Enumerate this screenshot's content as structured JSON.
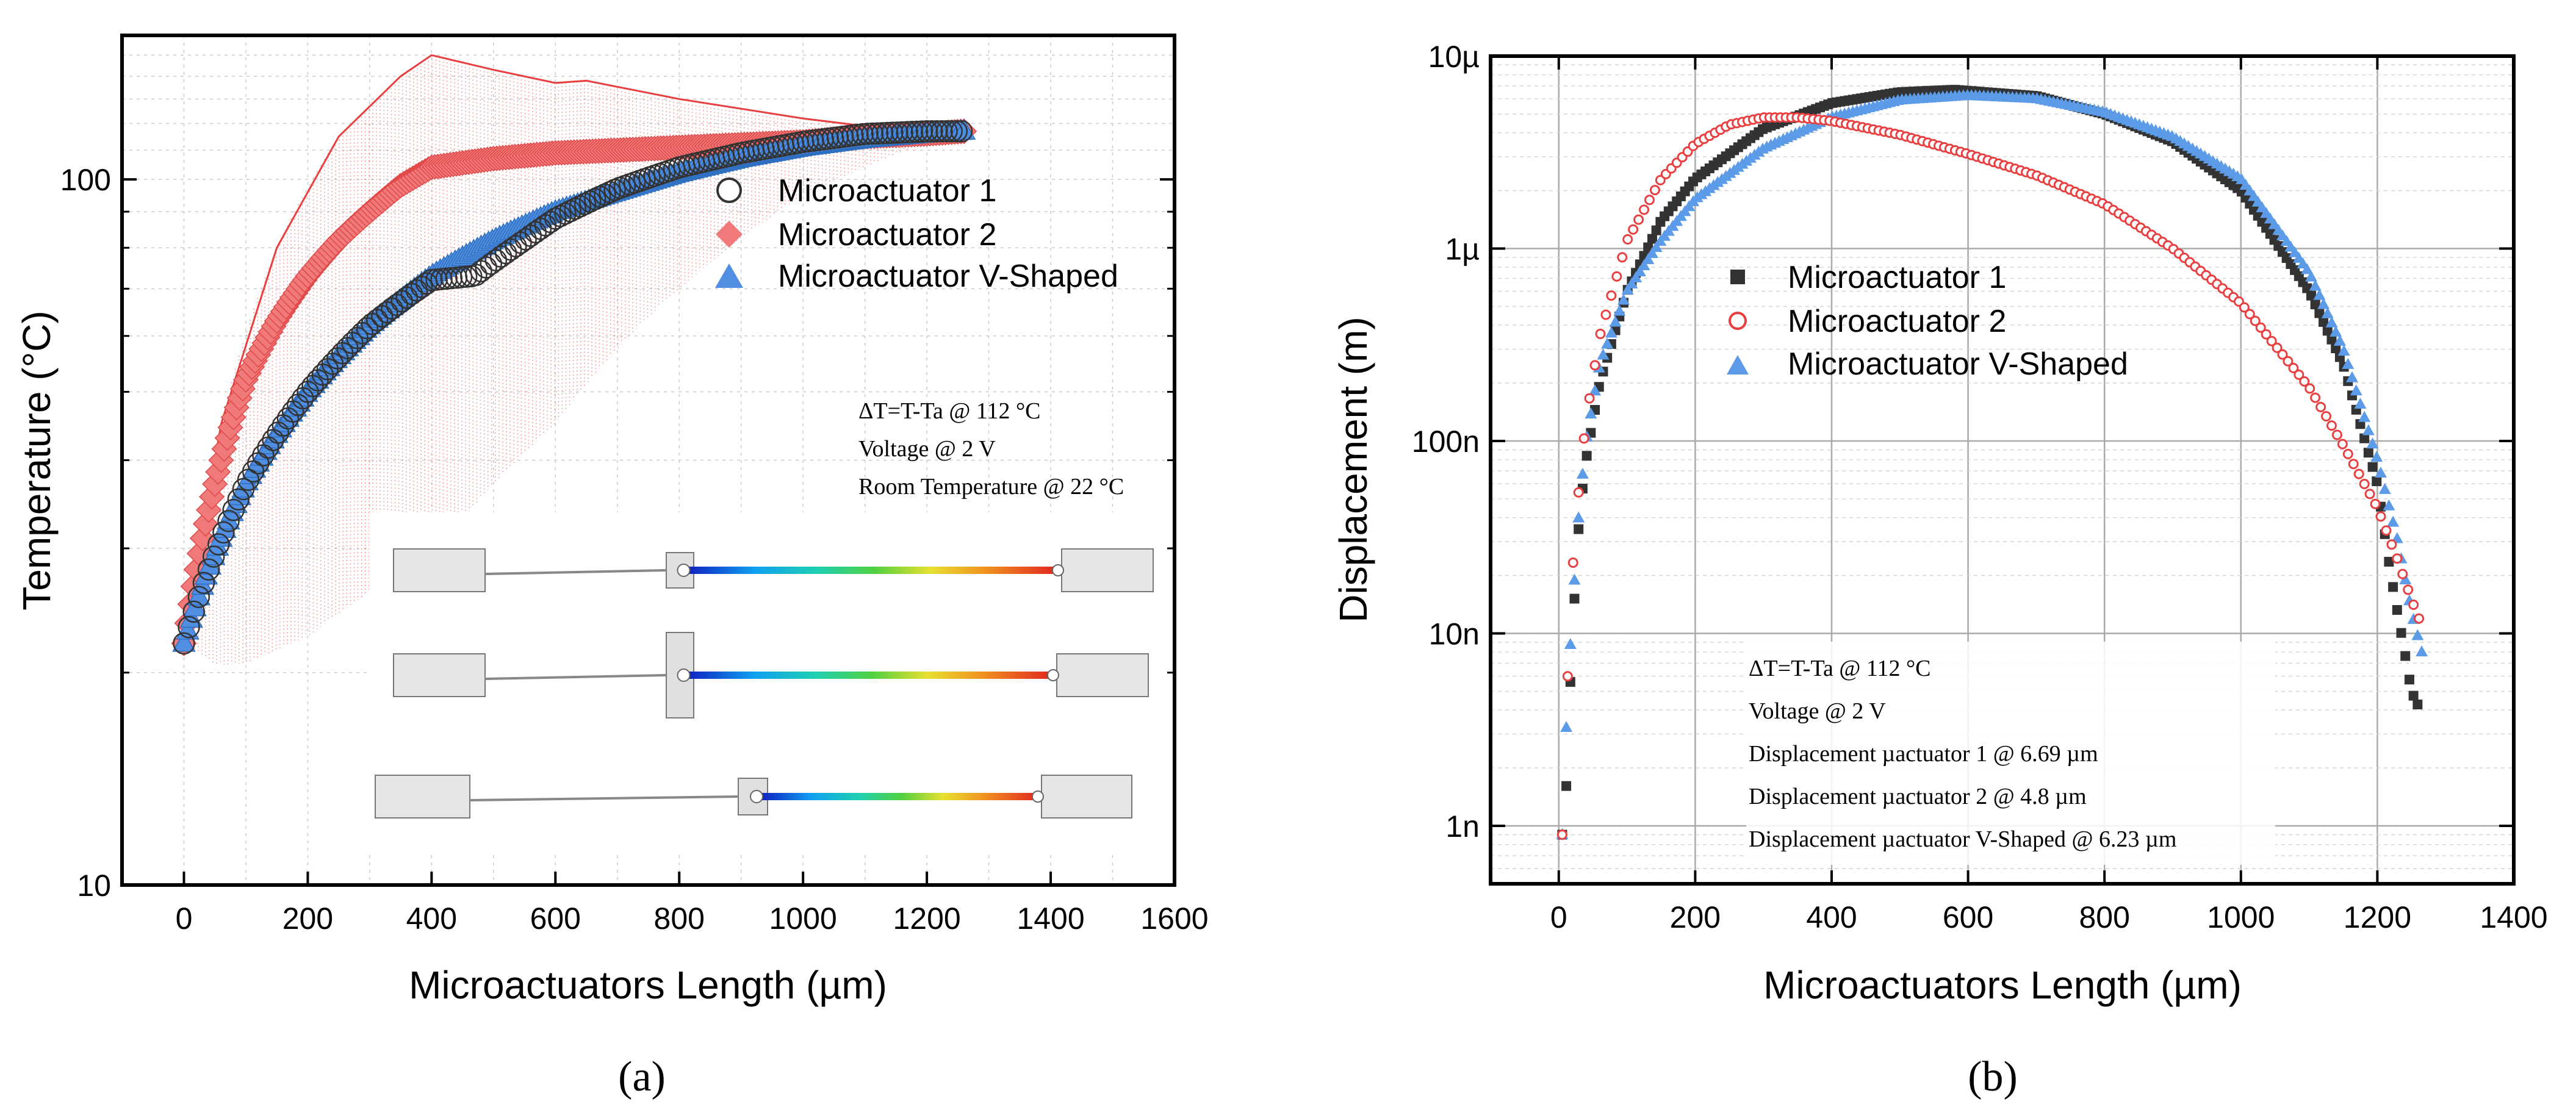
{
  "chart_data": [
    {
      "panel_label": "(a)",
      "type": "scatter",
      "xlabel": "Microactuators Length (µm)",
      "ylabel": "Temperature (°C)",
      "xlim": [
        -100,
        1600
      ],
      "ylim": [
        10,
        160
      ],
      "yscale": "log",
      "x_ticks": [
        0,
        200,
        400,
        600,
        800,
        1000,
        1200,
        1400,
        1600
      ],
      "y_ticks": [
        {
          "value": 10,
          "label": "10"
        },
        {
          "value": 100,
          "label": "100"
        }
      ],
      "legend": {
        "placement": "top-right",
        "entries": [
          {
            "name": "Microactuator 1",
            "marker": "circle",
            "color": "#333333"
          },
          {
            "name": "Microactuator 2",
            "marker": "diamond",
            "color": "#f07a7a"
          },
          {
            "name": "Microactuator V-Shaped",
            "marker": "triangle",
            "color": "#4f8ee0"
          }
        ]
      },
      "series": [
        {
          "name": "Microactuator 1",
          "x": [
            0,
            100,
            200,
            300,
            400,
            470,
            550,
            600,
            700,
            800,
            900,
            1000,
            1100,
            1200,
            1260
          ],
          "y": [
            22,
            37,
            50,
            62,
            72,
            73,
            82,
            88,
            97,
            104,
            109,
            113,
            116,
            117,
            117
          ]
        },
        {
          "name": "Microactuator 2",
          "x": [
            0,
            50,
            100,
            150,
            200,
            250,
            300,
            350,
            400,
            500,
            600,
            700,
            800,
            900,
            1000,
            1100,
            1200,
            1260
          ],
          "y": [
            22,
            37,
            52,
            63,
            73,
            82,
            90,
            98,
            104,
            107,
            109,
            110,
            111,
            112,
            113,
            115,
            116,
            117
          ]
        },
        {
          "name": "Microactuator V-Shaped",
          "x": [
            0,
            100,
            200,
            300,
            400,
            500,
            600,
            700,
            800,
            900,
            1000,
            1100,
            1200,
            1260
          ],
          "y": [
            22,
            37,
            50,
            62,
            73,
            82,
            90,
            96,
            102,
            107,
            111,
            114,
            116,
            117
          ]
        }
      ],
      "annotations": [
        "ΔT=T-Ta @ 112 °C",
        "Voltage @ 2 V",
        "Room Temperature @ 22 °C"
      ]
    },
    {
      "panel_label": "(b)",
      "type": "scatter",
      "xlabel": "Microactuators Length (µm)",
      "ylabel": "Displacement (m)",
      "xlim": [
        -100,
        1400
      ],
      "ylim": [
        5e-10,
        1e-05
      ],
      "yscale": "log",
      "x_ticks": [
        0,
        200,
        400,
        600,
        800,
        1000,
        1200,
        1400
      ],
      "y_ticks": [
        {
          "value": 1e-09,
          "label": "1n"
        },
        {
          "value": 1e-08,
          "label": "10n"
        },
        {
          "value": 1e-07,
          "label": "100n"
        },
        {
          "value": 1e-06,
          "label": "1µ"
        },
        {
          "value": 1e-05,
          "label": "10µ"
        }
      ],
      "legend": {
        "placement": "center",
        "entries": [
          {
            "name": "Microactuator 1",
            "marker": "square",
            "color": "#333333"
          },
          {
            "name": "Microactuator 2",
            "marker": "circle",
            "color": "#e84040"
          },
          {
            "name": "Microactuator V-Shaped",
            "marker": "triangle",
            "color": "#4f8ee0"
          }
        ]
      },
      "series": [
        {
          "name": "Microactuator 1",
          "x": [
            5,
            10,
            15,
            20,
            30,
            40,
            60,
            100,
            150,
            200,
            300,
            400,
            500,
            580,
            700,
            800,
            900,
            1000,
            1100,
            1150,
            1200,
            1220,
            1240,
            1250,
            1260
          ],
          "y": [
            9e-10,
            1.3e-09,
            3.8e-09,
            1e-08,
            4e-08,
            8e-08,
            2e-07,
            6e-07,
            1.4e-06,
            2.3e-06,
            4.2e-06,
            5.7e-06,
            6.5e-06,
            6.69e-06,
            6.2e-06,
            5e-06,
            3.6e-06,
            2e-06,
            6e-07,
            2.5e-07,
            6e-08,
            2e-08,
            8e-09,
            5e-09,
            4.2e-09
          ]
        },
        {
          "name": "Microactuator 2",
          "x": [
            5,
            10,
            15,
            20,
            30,
            40,
            60,
            100,
            150,
            200,
            250,
            300,
            350,
            400,
            500,
            600,
            700,
            800,
            900,
            1000,
            1100,
            1150,
            1200,
            1230,
            1250,
            1265
          ],
          "y": [
            9e-10,
            3e-09,
            9.5e-09,
            2.1e-08,
            6e-08,
            1.3e-07,
            3.5e-07,
            1.1e-06,
            2.3e-06,
            3.5e-06,
            4.4e-06,
            4.8e-06,
            4.8e-06,
            4.6e-06,
            3.9e-06,
            3.1e-06,
            2.4e-06,
            1.7e-06,
            1e-06,
            5.2e-07,
            1.9e-07,
            9.5e-08,
            4.5e-08,
            2.4e-08,
            1.5e-08,
            1.1e-08
          ]
        },
        {
          "name": "Microactuator V-Shaped",
          "x": [
            5,
            10,
            15,
            20,
            30,
            40,
            60,
            100,
            150,
            200,
            300,
            400,
            500,
            600,
            700,
            800,
            900,
            1000,
            1100,
            1150,
            1200,
            1230,
            1250,
            1265
          ],
          "y": [
            9e-10,
            2.7e-09,
            6.7e-09,
            1.3e-08,
            4.5e-08,
            1e-07,
            2.5e-07,
            6e-07,
            1.1e-06,
            1.8e-06,
            3.3e-06,
            4.8e-06,
            5.9e-06,
            6.23e-06,
            6e-06,
            5.1e-06,
            3.8e-06,
            2.3e-06,
            7.5e-07,
            3e-07,
            8e-08,
            3e-08,
            1.3e-08,
            8e-09
          ]
        }
      ],
      "annotations": [
        "ΔT=T-Ta @ 112 °C",
        "Voltage @ 2 V",
        "Displacement µactuator 1 @ 6.69 µm",
        "Displacement µactuator 2 @ 4.8 µm",
        "Displacement µactuator V-Shaped @ 6.23 µm"
      ]
    }
  ]
}
